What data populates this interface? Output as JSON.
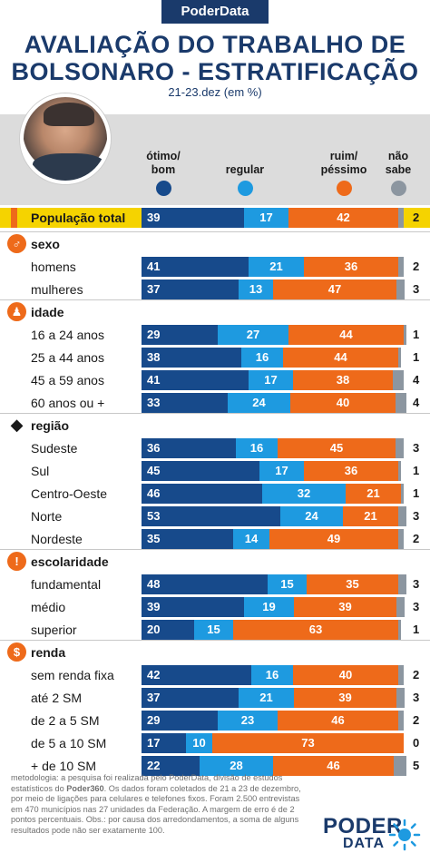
{
  "header": {
    "brand": "PoderData",
    "title_line1": "AVALIAÇÃO DO TRABALHO DE",
    "title_line2": "BOLSONARO - ESTRATIFICAÇÃO",
    "subtitle": "21-23.dez (em %)"
  },
  "legend": {
    "good": [
      "ótimo/",
      "bom"
    ],
    "regular": [
      "regular"
    ],
    "bad": [
      "ruim/",
      "péssimo"
    ],
    "ns": [
      "não",
      "sabe"
    ]
  },
  "colors": {
    "good": "#174a8b",
    "regular": "#1e9ae0",
    "bad": "#ee6a1a",
    "ns": "#8c96a0",
    "highlight": "#f5d300",
    "brand": "#1a3a6b"
  },
  "chart_data": {
    "type": "bar",
    "stacked": true,
    "series_order": [
      "ótimo/bom",
      "regular",
      "ruim/péssimo",
      "não sabe"
    ],
    "total": {
      "label": "População total",
      "values": [
        39,
        17,
        42,
        2
      ]
    },
    "groups": [
      {
        "name": "sexo",
        "icon": "gender-icon",
        "rows": [
          {
            "label": "homens",
            "values": [
              41,
              21,
              36,
              2
            ]
          },
          {
            "label": "mulheres",
            "values": [
              37,
              13,
              47,
              3
            ]
          }
        ]
      },
      {
        "name": "idade",
        "icon": "person-icon",
        "rows": [
          {
            "label": "16 a 24 anos",
            "values": [
              29,
              27,
              44,
              1
            ]
          },
          {
            "label": "25 a 44 anos",
            "values": [
              38,
              16,
              44,
              1
            ]
          },
          {
            "label": "45 a 59 anos",
            "values": [
              41,
              17,
              38,
              4
            ]
          },
          {
            "label": "60 anos ou +",
            "values": [
              33,
              24,
              40,
              4
            ]
          }
        ]
      },
      {
        "name": "região",
        "icon": "brazil-map-icon",
        "rows": [
          {
            "label": "Sudeste",
            "values": [
              36,
              16,
              45,
              3
            ]
          },
          {
            "label": "Sul",
            "values": [
              45,
              17,
              36,
              1
            ]
          },
          {
            "label": "Centro-Oeste",
            "values": [
              46,
              32,
              21,
              1
            ]
          },
          {
            "label": "Norte",
            "values": [
              53,
              24,
              21,
              3
            ]
          },
          {
            "label": "Nordeste",
            "values": [
              35,
              14,
              49,
              2
            ]
          }
        ]
      },
      {
        "name": "escolaridade",
        "icon": "exclamation-icon",
        "rows": [
          {
            "label": "fundamental",
            "values": [
              48,
              15,
              35,
              3
            ]
          },
          {
            "label": "médio",
            "values": [
              39,
              19,
              39,
              3
            ]
          },
          {
            "label": "superior",
            "values": [
              20,
              15,
              63,
              1
            ]
          }
        ]
      },
      {
        "name": "renda",
        "icon": "dollar-icon",
        "rows": [
          {
            "label": "sem renda fixa",
            "values": [
              42,
              16,
              40,
              2
            ]
          },
          {
            "label": "até 2 SM",
            "values": [
              37,
              21,
              39,
              3
            ]
          },
          {
            "label": "de 2 a 5 SM",
            "values": [
              29,
              23,
              46,
              2
            ]
          },
          {
            "label": "de 5 a 10 SM",
            "values": [
              17,
              10,
              73,
              0
            ]
          },
          {
            "label": "+ de 10 SM",
            "values": [
              22,
              28,
              46,
              5
            ]
          }
        ]
      }
    ]
  },
  "footer": {
    "note_prefix": "metodologia: a pesquisa foi realizada pelo PoderData, divisão de estudos estatísticos do ",
    "note_brand": "Poder360",
    "note_suffix": ". Os dados foram coletados de 21 a 23 de dezembro, por meio de ligações para celulares e telefones fixos. Foram 2.500 entrevistas em 470 municípios nas 27 unidades da Federação. A margem de erro é de 2 pontos percentuais. Obs.: por causa dos arredondamentos, a soma de alguns resultados pode não ser exatamente 100.",
    "logo_line1": "PODER",
    "logo_line2": "DATA"
  }
}
